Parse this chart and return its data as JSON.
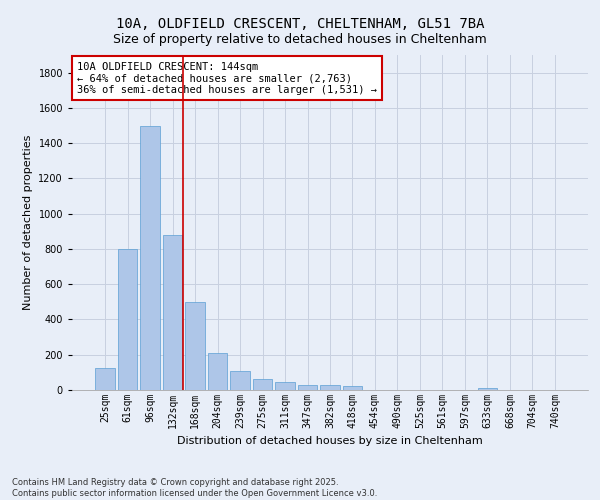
{
  "title_line1": "10A, OLDFIELD CRESCENT, CHELTENHAM, GL51 7BA",
  "title_line2": "Size of property relative to detached houses in Cheltenham",
  "xlabel": "Distribution of detached houses by size in Cheltenham",
  "ylabel": "Number of detached properties",
  "categories": [
    "25sqm",
    "61sqm",
    "96sqm",
    "132sqm",
    "168sqm",
    "204sqm",
    "239sqm",
    "275sqm",
    "311sqm",
    "347sqm",
    "382sqm",
    "418sqm",
    "454sqm",
    "490sqm",
    "525sqm",
    "561sqm",
    "597sqm",
    "633sqm",
    "668sqm",
    "704sqm",
    "740sqm"
  ],
  "values": [
    125,
    800,
    1500,
    880,
    500,
    210,
    110,
    65,
    45,
    30,
    30,
    20,
    0,
    0,
    0,
    0,
    0,
    10,
    0,
    0,
    0
  ],
  "bar_color": "#aec6e8",
  "bar_edge_color": "#5a9fd4",
  "highlight_color": "#cc0000",
  "red_line_x": 3.45,
  "annotation_text": "10A OLDFIELD CRESCENT: 144sqm\n← 64% of detached houses are smaller (2,763)\n36% of semi-detached houses are larger (1,531) →",
  "annotation_box_color": "#ffffff",
  "annotation_box_edge": "#cc0000",
  "ylim": [
    0,
    1900
  ],
  "yticks": [
    0,
    200,
    400,
    600,
    800,
    1000,
    1200,
    1400,
    1600,
    1800
  ],
  "grid_color": "#c8d0e0",
  "bg_color": "#e8eef8",
  "footer_text": "Contains HM Land Registry data © Crown copyright and database right 2025.\nContains public sector information licensed under the Open Government Licence v3.0.",
  "title1_fontsize": 10,
  "title2_fontsize": 9,
  "label_fontsize": 8,
  "tick_fontsize": 7,
  "annotation_fontsize": 7.5,
  "footer_fontsize": 6
}
